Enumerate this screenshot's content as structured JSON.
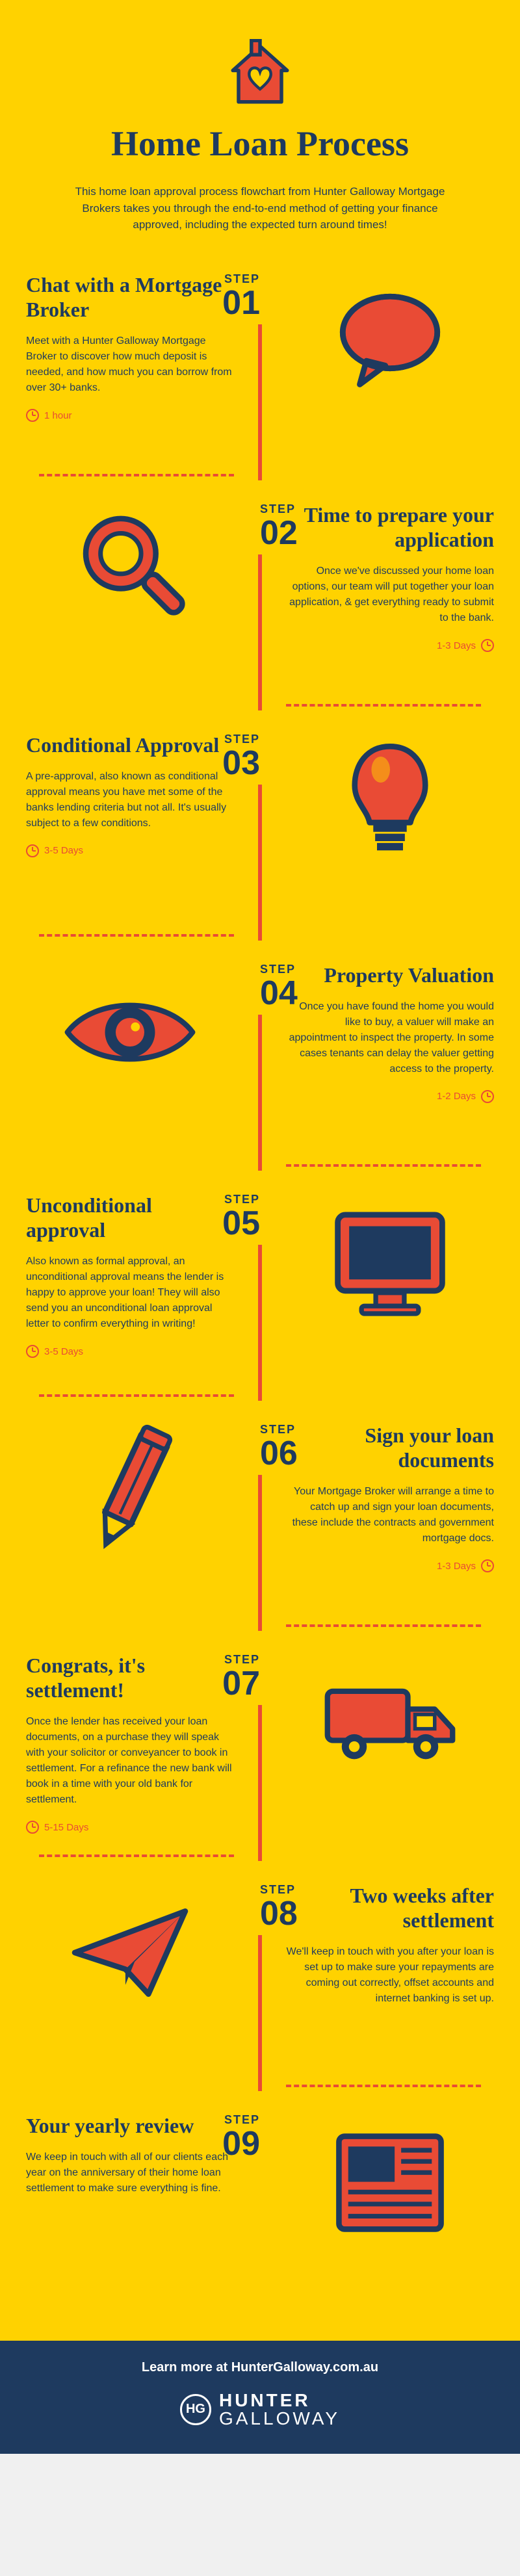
{
  "colors": {
    "bg": "#ffd200",
    "navy": "#1e3a5f",
    "red": "#e94b35"
  },
  "header": {
    "title": "Home Loan Process",
    "intro": "This home loan approval process flowchart from Hunter Galloway Mortgage Brokers takes you through the end-to-end method of getting your finance approved, including the expected turn around times!"
  },
  "step_label": "STEP",
  "steps": [
    {
      "num": "01",
      "side": "left",
      "icon": "speech-bubble",
      "title": "Chat with a Mortgage Broker",
      "desc": "Meet with a Hunter Galloway Mortgage Broker to discover how much deposit is needed, and how much you can borrow from over 30+ banks.",
      "time": "1 hour"
    },
    {
      "num": "02",
      "side": "right",
      "icon": "magnifier",
      "title": "Time to prepare your application",
      "desc": "Once we've discussed your home loan options, our team will put together your loan application, & get everything ready to submit to the bank.",
      "time": "1-3 Days"
    },
    {
      "num": "03",
      "side": "left",
      "icon": "lightbulb",
      "title": "Conditional Approval",
      "desc": "A pre-approval, also known as conditional approval means you have met some of the banks lending criteria but not all. It's usually subject to a few conditions.",
      "time": "3-5 Days"
    },
    {
      "num": "04",
      "side": "right",
      "icon": "eye",
      "title": "Property Valuation",
      "desc": "Once you have found the home you would like to buy, a valuer will make an appointment to inspect the property. In some cases tenants can delay the valuer getting access to the property.",
      "time": "1-2 Days"
    },
    {
      "num": "05",
      "side": "left",
      "icon": "monitor",
      "title": "Unconditional approval",
      "desc": "Also known as formal approval, an unconditional approval means the lender is happy to approve your loan! They will also send you an unconditional loan approval letter to confirm everything in writing!",
      "time": "3-5 Days"
    },
    {
      "num": "06",
      "side": "right",
      "icon": "pencil",
      "title": "Sign your loan documents",
      "desc": "Your Mortgage Broker will arrange a time to catch up and sign your loan documents, these include the contracts and government mortgage docs.",
      "time": "1-3 Days"
    },
    {
      "num": "07",
      "side": "left",
      "icon": "truck",
      "title": "Congrats, it's settlement!",
      "desc": "Once the lender has received your loan documents, on a purchase they will speak with your solicitor or conveyancer to book in settlement. For a refinance the new bank will book in a time with your old bank for settlement.",
      "time": "5-15 Days"
    },
    {
      "num": "08",
      "side": "right",
      "icon": "paper-plane",
      "title": "Two weeks after settlement",
      "desc": "We'll keep in touch with you after your loan is set up to make sure your repayments are coming out correctly, offset accounts and internet banking is set up.",
      "time": ""
    },
    {
      "num": "09",
      "side": "left",
      "icon": "newspaper",
      "title": "Your yearly review",
      "desc": "We keep in touch with all of our clients each year on the anniversary of their home loan settlement to make sure everything is fine.",
      "time": ""
    }
  ],
  "footer": {
    "cta": "Learn more at HunterGalloway.com.au",
    "brand1": "HUNTER",
    "brand2": "GALLOWAY",
    "monogram": "HG"
  }
}
